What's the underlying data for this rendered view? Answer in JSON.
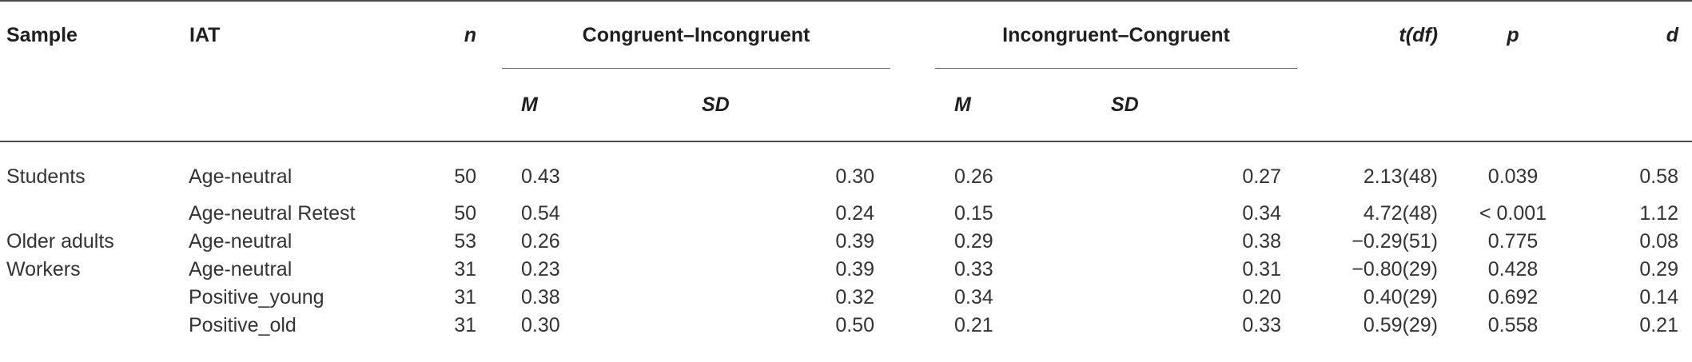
{
  "header": {
    "sample": "Sample",
    "iat": "IAT",
    "n": "n",
    "group1": "Congruent–Incongruent",
    "group2": "Incongruent–Congruent",
    "t": "t(df)",
    "p": "p",
    "d": "d",
    "m": "M",
    "sd": "SD"
  },
  "rows": [
    {
      "sample": "Students",
      "iat": "Age-neutral",
      "n": "50",
      "m1": "0.43",
      "sd1": "0.30",
      "m2": "0.26",
      "sd2": "0.27",
      "t": "2.13(48)",
      "p": "0.039",
      "d": "0.58"
    },
    {
      "sample": "",
      "iat": "Age-neutral Retest",
      "n": "50",
      "m1": "0.54",
      "sd1": "0.24",
      "m2": "0.15",
      "sd2": "0.34",
      "t": "4.72(48)",
      "p": "< 0.001",
      "d": "1.12"
    },
    {
      "sample": "Older adults",
      "iat": "Age-neutral",
      "n": "53",
      "m1": "0.26",
      "sd1": "0.39",
      "m2": "0.29",
      "sd2": "0.38",
      "t": "−0.29(51)",
      "p": "0.775",
      "d": "0.08"
    },
    {
      "sample": "Workers",
      "iat": "Age-neutral",
      "n": "31",
      "m1": "0.23",
      "sd1": "0.39",
      "m2": "0.33",
      "sd2": "0.31",
      "t": "−0.80(29)",
      "p": "0.428",
      "d": "0.29"
    },
    {
      "sample": "",
      "iat": "Positive_young",
      "n": "31",
      "m1": "0.38",
      "sd1": "0.32",
      "m2": "0.34",
      "sd2": "0.20",
      "t": "0.40(29)",
      "p": "0.692",
      "d": "0.14"
    },
    {
      "sample": "",
      "iat": "Positive_old",
      "n": "31",
      "m1": "0.30",
      "sd1": "0.50",
      "m2": "0.21",
      "sd2": "0.33",
      "t": "0.59(29)",
      "p": "0.558",
      "d": "0.21"
    }
  ]
}
